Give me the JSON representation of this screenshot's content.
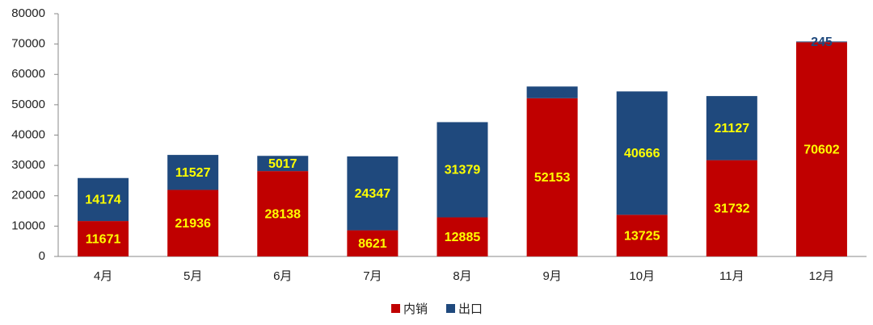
{
  "chart_data": {
    "type": "stacked_bar",
    "categories": [
      "4月",
      "5月",
      "6月",
      "7月",
      "8月",
      "9月",
      "10月",
      "11月",
      "12月"
    ],
    "series": [
      {
        "name": "内销",
        "color": "#c00000",
        "values": [
          11671,
          21936,
          28138,
          8621,
          12885,
          52153,
          13725,
          31732,
          70602
        ]
      },
      {
        "name": "出口",
        "color": "#1f497d",
        "values": [
          14174,
          11527,
          5017,
          24347,
          31379,
          3853,
          40666,
          21127,
          245
        ]
      }
    ],
    "ylim": [
      0,
      80000
    ],
    "yticks": [
      0,
      10000,
      20000,
      30000,
      40000,
      50000,
      60000,
      70000,
      80000
    ],
    "grid": false,
    "legend": "bottom",
    "label_color": "#ffff00"
  }
}
